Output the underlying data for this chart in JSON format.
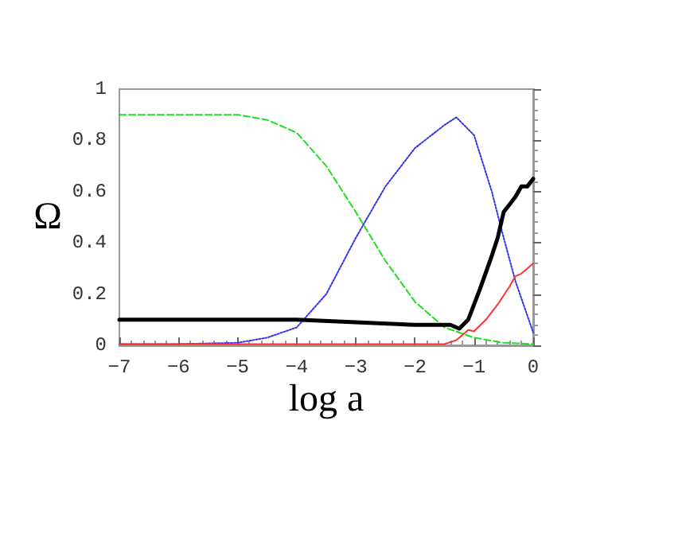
{
  "chart_data": {
    "type": "line",
    "xlabel": "log a",
    "ylabel": "Ω",
    "xlim": [
      -7,
      0
    ],
    "ylim": [
      0,
      1
    ],
    "xticks": [
      -7,
      -6,
      -5,
      -4,
      -3,
      -2,
      -1,
      0
    ],
    "yticks": [
      0,
      0.2,
      0.4,
      0.6,
      0.8,
      1
    ],
    "grid": false,
    "marker": "none",
    "series": [
      {
        "color": "#22dd22",
        "line_style": "dashed",
        "x": [
          -7,
          -6,
          -5,
          -4.5,
          -4,
          -3.5,
          -3,
          -2.5,
          -2,
          -1.5,
          -1,
          -0.5,
          0
        ],
        "values": [
          0.9,
          0.9,
          0.9,
          0.88,
          0.83,
          0.7,
          0.52,
          0.33,
          0.17,
          0.07,
          0.03,
          0.01,
          0.005
        ]
      },
      {
        "color": "#3333ee",
        "line_style": "dotted",
        "x": [
          -7,
          -6,
          -5,
          -4.5,
          -4,
          -3.5,
          -3,
          -2.5,
          -2,
          -1.5,
          -1.3,
          -1,
          -0.7,
          -0.5,
          -0.3,
          0
        ],
        "values": [
          0.005,
          0.005,
          0.01,
          0.03,
          0.07,
          0.2,
          0.42,
          0.62,
          0.77,
          0.86,
          0.89,
          0.82,
          0.6,
          0.42,
          0.25,
          0.05
        ]
      },
      {
        "color": "#000000",
        "line_style": "solid",
        "x": [
          -7,
          -4,
          -3,
          -2,
          -1.4,
          -1.25,
          -1.1,
          -0.9,
          -0.7,
          -0.6,
          -0.5,
          -0.4,
          -0.3,
          -0.2,
          -0.1,
          0
        ],
        "values": [
          0.1,
          0.1,
          0.09,
          0.08,
          0.08,
          0.065,
          0.1,
          0.22,
          0.35,
          0.42,
          0.52,
          0.55,
          0.58,
          0.62,
          0.62,
          0.65
        ]
      },
      {
        "color": "#ff3333",
        "line_style": "solid",
        "x": [
          -7,
          -1.5,
          -1.3,
          -1.1,
          -1,
          -0.8,
          -0.6,
          -0.4,
          -0.3,
          -0.2,
          -0.1,
          0
        ],
        "values": [
          0.005,
          0.005,
          0.02,
          0.06,
          0.055,
          0.1,
          0.16,
          0.23,
          0.27,
          0.28,
          0.3,
          0.32
        ]
      }
    ]
  }
}
